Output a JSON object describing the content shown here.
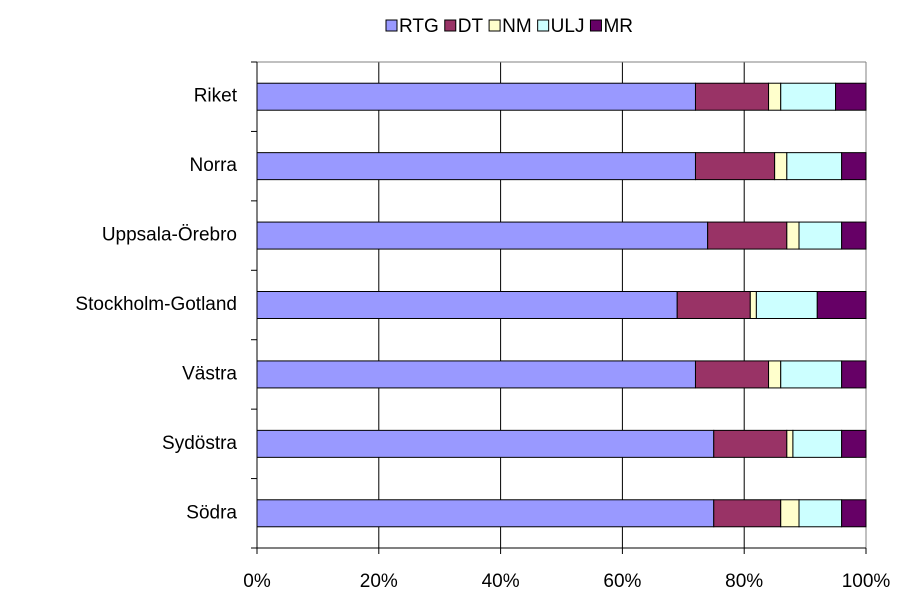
{
  "chart_data": {
    "type": "stacked_bar_horizontal",
    "categories": [
      "Riket",
      "Norra",
      "Uppsala-Örebro",
      "Stockholm-Gotland",
      "Västra",
      "Sydöstra",
      "Södra"
    ],
    "series": [
      {
        "name": "RTG",
        "color": "#9999ff",
        "values": [
          72,
          72,
          74,
          69,
          72,
          75,
          75
        ]
      },
      {
        "name": "DT",
        "color": "#993366",
        "values": [
          12,
          13,
          13,
          12,
          12,
          12,
          11
        ]
      },
      {
        "name": "NM",
        "color": "#ffffcc",
        "values": [
          2,
          2,
          2,
          1,
          2,
          1,
          3
        ]
      },
      {
        "name": "ULJ",
        "color": "#ccffff",
        "values": [
          9,
          9,
          7,
          10,
          10,
          8,
          7
        ]
      },
      {
        "name": "MR",
        "color": "#660066",
        "values": [
          5,
          4,
          4,
          8,
          4,
          4,
          4
        ]
      }
    ],
    "xlim": [
      0,
      100
    ],
    "xticks": [
      {
        "value": 0,
        "label": "0%"
      },
      {
        "value": 20,
        "label": "20%"
      },
      {
        "value": 40,
        "label": "40%"
      },
      {
        "value": 60,
        "label": "60%"
      },
      {
        "value": 80,
        "label": "80%"
      },
      {
        "value": 100,
        "label": "100%"
      }
    ],
    "grid": true,
    "legend": "top"
  }
}
